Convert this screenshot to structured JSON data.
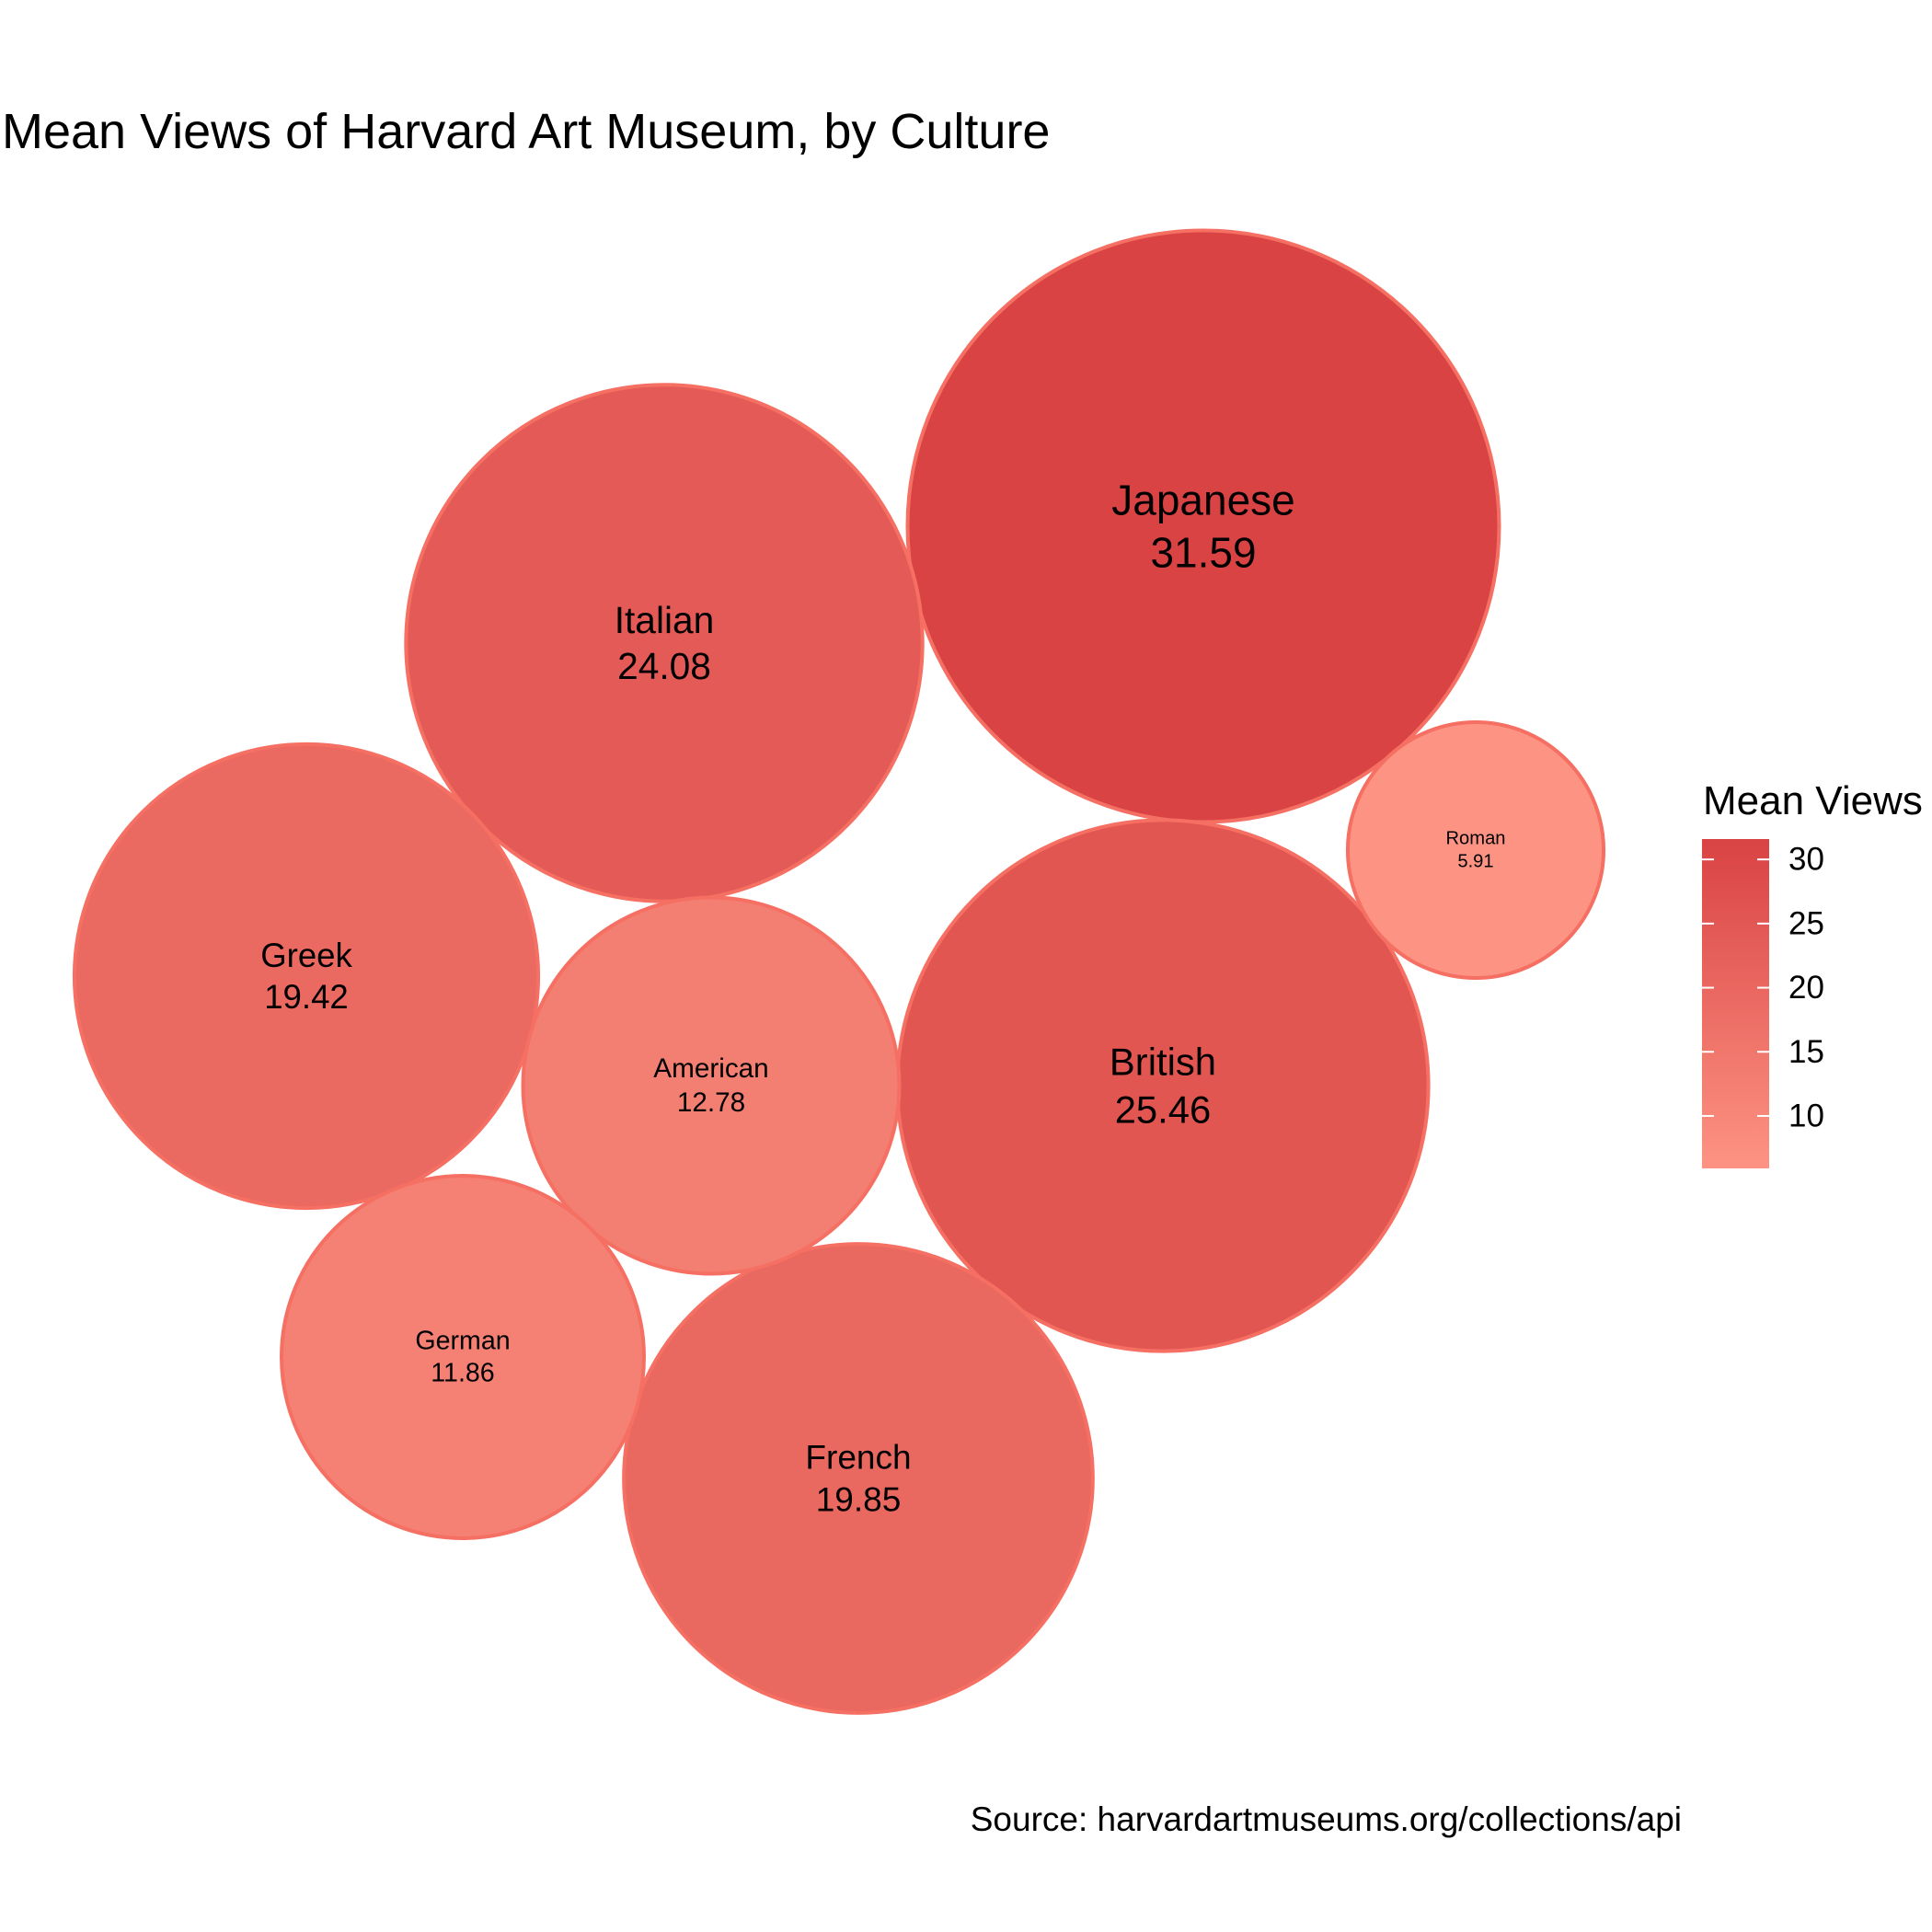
{
  "chart_data": {
    "type": "bubble",
    "title": "Mean Views of Harvard Art Museum, by Culture",
    "caption": "Source: harvardartmuseums.org/collections/api",
    "legend": {
      "title": "Mean Views",
      "placement": "right",
      "range": [
        5.91,
        31.59
      ],
      "ticks": [
        10,
        15,
        20,
        25,
        30
      ],
      "low_color": "#FD9383",
      "high_color": "#D94343"
    },
    "bubble_stroke": "#F56F63",
    "grid": false,
    "items": [
      {
        "label": "Japanese",
        "value": 31.59
      },
      {
        "label": "British",
        "value": 25.46
      },
      {
        "label": "Italian",
        "value": 24.08
      },
      {
        "label": "French",
        "value": 19.85
      },
      {
        "label": "Greek",
        "value": 19.42
      },
      {
        "label": "American",
        "value": 12.78
      },
      {
        "label": "German",
        "value": 11.86
      },
      {
        "label": "Roman",
        "value": 5.91
      }
    ]
  }
}
